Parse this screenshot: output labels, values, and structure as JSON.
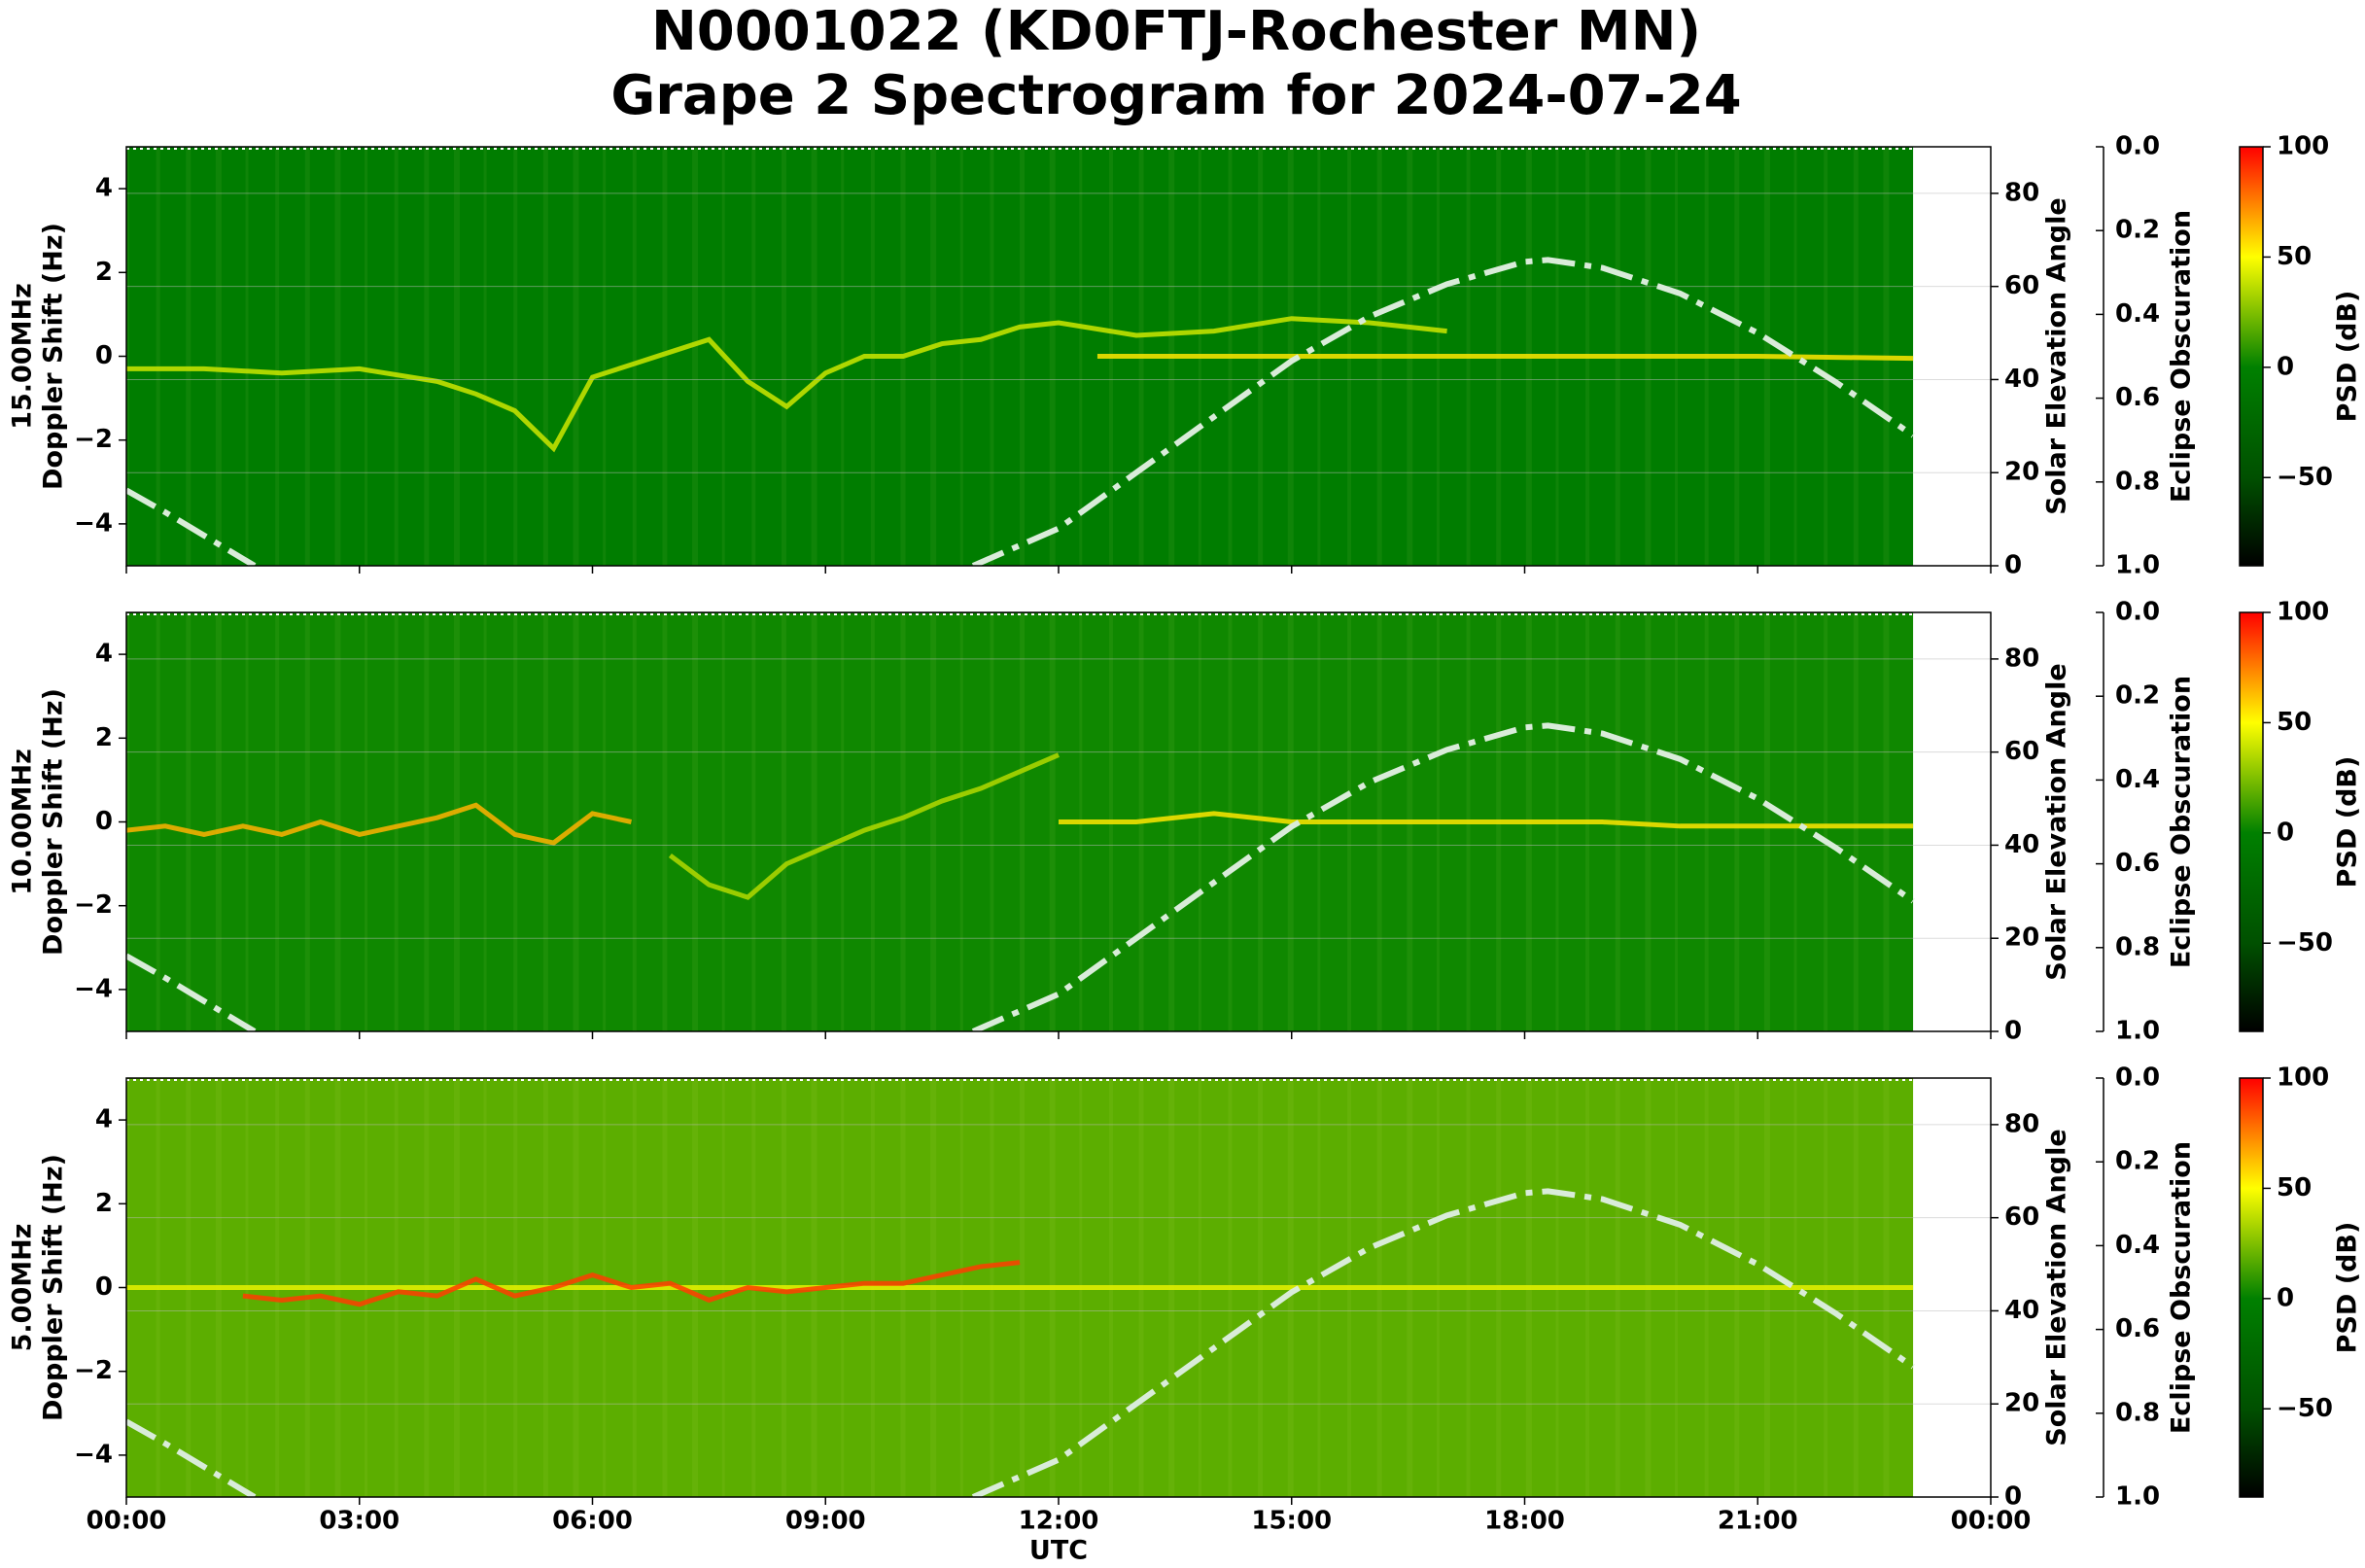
{
  "title": [
    "N0001022 (KD0FTJ-Rochester MN)",
    "Grape 2 Spectrogram for 2024-07-24"
  ],
  "chart_data": [
    {
      "type": "spectrogram",
      "ylabel": [
        "15.00MHz",
        "Doppler Shift (Hz)"
      ],
      "y2label": "Solar Elevation Angle",
      "y3label": "Eclipse Obscuration",
      "clabel": "PSD (dB)",
      "ylim": [
        -5,
        5
      ],
      "yticks": [
        {
          "value": -4,
          "label": "−4"
        },
        {
          "value": -2,
          "label": "−2"
        },
        0,
        2,
        4
      ],
      "y2lim": [
        0,
        90
      ],
      "y2ticks": [
        0,
        20,
        40,
        60,
        80
      ],
      "y3lim": [
        1,
        0
      ],
      "y3ticks": [
        {
          "value": 0,
          "label": "0.0"
        },
        {
          "value": 0.2,
          "label": "0.2"
        },
        {
          "value": 0.4,
          "label": "0.4"
        },
        {
          "value": 0.6,
          "label": "0.6"
        },
        {
          "value": 0.8,
          "label": "0.8"
        },
        {
          "value": 1,
          "label": "1.0"
        }
      ],
      "clim": [
        -90,
        100
      ],
      "cticks": [
        {
          "value": -50,
          "label": "−50"
        },
        0,
        50,
        100
      ],
      "colormap": [
        {
          "value": -90,
          "color": "#000000"
        },
        {
          "value": -50,
          "color": "#005000"
        },
        {
          "value": 0,
          "color": "#008000"
        },
        {
          "value": 50,
          "color": "#ffff00"
        },
        {
          "value": 100,
          "color": "#ff0000"
        }
      ],
      "grid": true,
      "spectrum_xlim": [
        0,
        23
      ],
      "floor_db": -3,
      "traces": [
        {
          "level": 40,
          "x": [
            0,
            1,
            2,
            3,
            4,
            4.5,
            5,
            5.5,
            6,
            6.5,
            7,
            7.5,
            8,
            8.5,
            9,
            9.5,
            10,
            10.5,
            11,
            11.5,
            12,
            13,
            14,
            15,
            16,
            17
          ],
          "values": [
            -0.3,
            -0.3,
            -0.4,
            -0.3,
            -0.6,
            -0.9,
            -1.3,
            -2.2,
            -0.5,
            -0.2,
            0.1,
            0.4,
            -0.6,
            -1.2,
            -0.4,
            0,
            0,
            0.3,
            0.4,
            0.7,
            0.8,
            0.5,
            0.6,
            0.9,
            0.8,
            0.6
          ]
        },
        {
          "level": 55,
          "x": [
            12.5,
            15,
            18,
            21,
            23
          ],
          "values": [
            0,
            0,
            0,
            0,
            -0.05
          ]
        }
      ],
      "series": [
        {
          "color": "#d9ecd9",
          "axis": "y2",
          "x": [
            0,
            0.5,
            1,
            1.5,
            1.65,
            6,
            10.9,
            12,
            13,
            14,
            15,
            16,
            17,
            18,
            18.3,
            19,
            20,
            21,
            22,
            23
          ],
          "values": [
            16.2,
            11.5,
            6.5,
            1.5,
            0,
            null,
            0,
            8,
            20,
            32,
            44,
            53.5,
            60.5,
            65.3,
            65.7,
            64,
            58.5,
            50,
            39.5,
            28
          ]
        }
      ]
    },
    {
      "type": "spectrogram",
      "ylabel": [
        "10.00MHz",
        "Doppler Shift (Hz)"
      ],
      "y2label": "Solar Elevation Angle",
      "y3label": "Eclipse Obscuration",
      "clabel": "PSD (dB)",
      "ylim": [
        -5,
        5
      ],
      "yticks": [
        {
          "value": -4,
          "label": "−4"
        },
        {
          "value": -2,
          "label": "−2"
        },
        0,
        2,
        4
      ],
      "y2lim": [
        0,
        90
      ],
      "y2ticks": [
        0,
        20,
        40,
        60,
        80
      ],
      "y3lim": [
        1,
        0
      ],
      "y3ticks": [
        {
          "value": 0,
          "label": "0.0"
        },
        {
          "value": 0.2,
          "label": "0.2"
        },
        {
          "value": 0.4,
          "label": "0.4"
        },
        {
          "value": 0.6,
          "label": "0.6"
        },
        {
          "value": 0.8,
          "label": "0.8"
        },
        {
          "value": 1,
          "label": "1.0"
        }
      ],
      "clim": [
        -90,
        100
      ],
      "cticks": [
        {
          "value": -50,
          "label": "−50"
        },
        0,
        50,
        100
      ],
      "colormap": [
        {
          "value": -90,
          "color": "#000000"
        },
        {
          "value": -50,
          "color": "#005000"
        },
        {
          "value": 0,
          "color": "#008000"
        },
        {
          "value": 50,
          "color": "#ffff00"
        },
        {
          "value": 100,
          "color": "#ff0000"
        }
      ],
      "grid": true,
      "spectrum_xlim": [
        0,
        23
      ],
      "floor_db": 3,
      "traces": [
        {
          "level": 65,
          "x": [
            0,
            0.5,
            1,
            1.5,
            2,
            2.5,
            3,
            3.5,
            4,
            4.5,
            5,
            5.5,
            6,
            6.5
          ],
          "values": [
            -0.2,
            -0.1,
            -0.3,
            -0.1,
            -0.3,
            0,
            -0.3,
            -0.1,
            0.1,
            0.4,
            -0.3,
            -0.5,
            0.2,
            0
          ]
        },
        {
          "level": 35,
          "x": [
            7,
            7.5,
            8,
            8.5,
            9,
            9.5,
            10,
            10.5,
            11,
            11.5,
            12
          ],
          "values": [
            -0.8,
            -1.5,
            -1.8,
            -1,
            -0.6,
            -0.2,
            0.1,
            0.5,
            0.8,
            1.2,
            1.6
          ]
        },
        {
          "level": 55,
          "x": [
            12,
            13,
            14,
            15,
            16,
            17,
            18,
            19,
            20,
            21,
            22,
            23
          ],
          "values": [
            0,
            0,
            0.2,
            0,
            0,
            0,
            0,
            0,
            -0.1,
            -0.1,
            -0.1,
            -0.1
          ]
        }
      ],
      "series": [
        {
          "color": "#d9ecd9",
          "axis": "y2",
          "x": [
            0,
            0.5,
            1,
            1.5,
            1.65,
            6,
            10.9,
            12,
            13,
            14,
            15,
            16,
            17,
            18,
            18.3,
            19,
            20,
            21,
            22,
            23
          ],
          "values": [
            16.2,
            11.5,
            6.5,
            1.5,
            0,
            null,
            0,
            8,
            20,
            32,
            44,
            53.5,
            60.5,
            65.3,
            65.7,
            64,
            58.5,
            50,
            39.5,
            28
          ]
        }
      ]
    },
    {
      "type": "spectrogram",
      "ylabel": [
        "5.00MHz",
        "Doppler Shift (Hz)"
      ],
      "y2label": "Solar Elevation Angle",
      "y3label": "Eclipse Obscuration",
      "clabel": "PSD (dB)",
      "xlabel": "UTC",
      "xlim": [
        0,
        24
      ],
      "xticks": [
        {
          "value": 0,
          "label": "00:00"
        },
        {
          "value": 3,
          "label": "03:00"
        },
        {
          "value": 6,
          "label": "06:00"
        },
        {
          "value": 9,
          "label": "09:00"
        },
        {
          "value": 12,
          "label": "12:00"
        },
        {
          "value": 15,
          "label": "15:00"
        },
        {
          "value": 18,
          "label": "18:00"
        },
        {
          "value": 21,
          "label": "21:00"
        },
        {
          "value": 24,
          "label": "00:00"
        }
      ],
      "ylim": [
        -5,
        5
      ],
      "yticks": [
        {
          "value": -4,
          "label": "−4"
        },
        {
          "value": -2,
          "label": "−2"
        },
        0,
        2,
        4
      ],
      "y2lim": [
        0,
        90
      ],
      "y2ticks": [
        0,
        20,
        40,
        60,
        80
      ],
      "y3lim": [
        1,
        0
      ],
      "y3ticks": [
        {
          "value": 0,
          "label": "0.0"
        },
        {
          "value": 0.2,
          "label": "0.2"
        },
        {
          "value": 0.4,
          "label": "0.4"
        },
        {
          "value": 0.6,
          "label": "0.6"
        },
        {
          "value": 0.8,
          "label": "0.8"
        },
        {
          "value": 1,
          "label": "1.0"
        }
      ],
      "clim": [
        -90,
        100
      ],
      "cticks": [
        {
          "value": -50,
          "label": "−50"
        },
        0,
        50,
        100
      ],
      "colormap": [
        {
          "value": -90,
          "color": "#000000"
        },
        {
          "value": -50,
          "color": "#005000"
        },
        {
          "value": 0,
          "color": "#008000"
        },
        {
          "value": 50,
          "color": "#ffff00"
        },
        {
          "value": 100,
          "color": "#ff0000"
        }
      ],
      "grid": true,
      "spectrum_xlim": [
        0,
        23
      ],
      "floor_db": 18,
      "traces": [
        {
          "level": 45,
          "x": [
            0,
            4,
            8,
            12,
            16,
            20,
            23
          ],
          "values": [
            0,
            0,
            0,
            0,
            0,
            0,
            0
          ]
        },
        {
          "level": 88,
          "x": [
            1.5,
            2,
            2.5,
            3,
            3.5,
            4,
            4.5,
            5,
            5.5,
            6,
            6.5,
            7,
            7.5,
            8,
            8.5,
            9,
            9.5,
            10,
            10.5,
            11,
            11.5
          ],
          "values": [
            -0.2,
            -0.3,
            -0.2,
            -0.4,
            -0.1,
            -0.2,
            0.2,
            -0.2,
            0,
            0.3,
            0,
            0.1,
            -0.3,
            0,
            -0.1,
            0,
            0.1,
            0.1,
            0.3,
            0.5,
            0.6
          ]
        }
      ],
      "series": [
        {
          "color": "#d9ecd9",
          "axis": "y2",
          "x": [
            0,
            0.5,
            1,
            1.5,
            1.65,
            6,
            10.9,
            12,
            13,
            14,
            15,
            16,
            17,
            18,
            18.3,
            19,
            20,
            21,
            22,
            23
          ],
          "values": [
            16.2,
            11.5,
            6.5,
            1.5,
            0,
            null,
            0,
            8,
            20,
            32,
            44,
            53.5,
            60.5,
            65.3,
            65.7,
            64,
            58.5,
            50,
            39.5,
            28
          ]
        }
      ]
    }
  ]
}
